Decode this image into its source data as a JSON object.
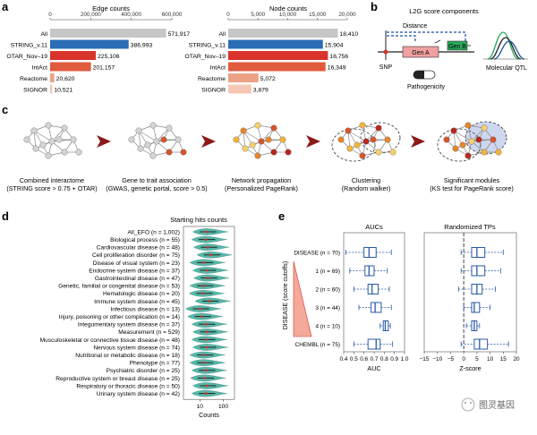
{
  "panel_letters": {
    "a": "a",
    "b": "b",
    "c": "c",
    "d": "d",
    "e": "e"
  },
  "colors": {
    "grey": "#c6c6c6",
    "blue": "#2a6db4",
    "red1": "#d8342b",
    "red2": "#e05a3c",
    "salmon1": "#eca286",
    "salmon2": "#f4c8b4",
    "violin": "#58b6a7",
    "box": "#2a5aa8",
    "dark_red_arrow": "#8b1a1a"
  },
  "chart_data": [
    {
      "type": "bar",
      "title": "Edge counts",
      "orientation": "horizontal",
      "categories": [
        "All",
        "STRING_v.11",
        "OTAR_Nov–19",
        "IntAct",
        "Reactome",
        "SIGNOR"
      ],
      "values": [
        571917,
        386993,
        225106,
        201157,
        20620,
        10521
      ],
      "value_labels": [
        "571,917",
        "386,993",
        "225,106",
        "201,157",
        "20,620",
        "10,521"
      ],
      "xlim": [
        0,
        600000
      ],
      "ticks": [
        "0",
        "200,000",
        "400,000",
        "600,000"
      ]
    },
    {
      "type": "bar",
      "title": "Node counts",
      "orientation": "horizontal",
      "categories": [
        "All",
        "STRING_v.11",
        "OTAR_Nov–19",
        "IntAct",
        "Reactome",
        "SIGNOR"
      ],
      "values": [
        18410,
        15904,
        16756,
        16349,
        5072,
        3879
      ],
      "value_labels": [
        "18,410",
        "15,904",
        "16,756",
        "16,349",
        "5,072",
        "3,879"
      ],
      "xlim": [
        0,
        20000
      ],
      "ticks": [
        "0",
        "5,000",
        "10,000",
        "15,000",
        "20,000"
      ]
    },
    {
      "type": "violin",
      "title": "Starting hits counts",
      "xlabel": "Counts",
      "x_scale": "log",
      "ticks": [
        "10",
        "100"
      ],
      "categories": [
        "All_EFO (n = 1,002)",
        "Biological process (n = 55)",
        "Cardiovascular disease (n = 48)",
        "Cell proliferation disorder (n = 75)",
        "Disease of visual system (n = 23)",
        "Endocrine system disease (n = 37)",
        "Gastrointestinal disease (n = 47)",
        "Genetic, familial or congenital disease (n = 53)",
        "Hematologic disease (n = 20)",
        "Immune system disease (n = 45)",
        "Infectious disease (n = 13)",
        "Injury, poisoning or other complication (n = 14)",
        "Integumentary system disease (n = 37)",
        "Measurement (n = 529)",
        "Musculoskeletal or connective tissue disease (n = 48)",
        "Nervous system disease (n = 74)",
        "Nutritional or metabolic disease (n = 18)",
        "Phenotype (n = 77)",
        "Psychiatric disorder (n = 25)",
        "Reproductive system or breast disease (n = 25)",
        "Respiratory or thoracic disease (n = 50)",
        "Urinary system disease (n = 42)"
      ],
      "medians": [
        20,
        18,
        22,
        30,
        15,
        20,
        22,
        15,
        14,
        25,
        10,
        12,
        18,
        20,
        18,
        20,
        15,
        15,
        18,
        16,
        20,
        18
      ]
    },
    {
      "type": "box",
      "title": "AUCs",
      "xlabel": "AUC",
      "xlim": [
        0.4,
        1.0
      ],
      "ticks": [
        "0.4",
        "0.5",
        "0.6",
        "0.7",
        "0.8",
        "0.9",
        "1.0"
      ],
      "ylabel": "DISEASE (score cutoffs)",
      "categories": [
        "DISEASE (n = 70)",
        "1 (n = 69)",
        "2 (n = 60)",
        "3 (n = 44)",
        "4 (n = 10)",
        "CHEMBL (n = 75)"
      ],
      "boxes": [
        {
          "min": 0.42,
          "q1": 0.6,
          "median": 0.65,
          "q3": 0.72,
          "max": 0.87
        },
        {
          "min": 0.46,
          "q1": 0.61,
          "median": 0.65,
          "q3": 0.7,
          "max": 0.83
        },
        {
          "min": 0.5,
          "q1": 0.64,
          "median": 0.68,
          "q3": 0.74,
          "max": 0.85
        },
        {
          "min": 0.55,
          "q1": 0.67,
          "median": 0.71,
          "q3": 0.77,
          "max": 0.87
        },
        {
          "min": 0.76,
          "q1": 0.79,
          "median": 0.81,
          "q3": 0.84,
          "max": 0.86
        },
        {
          "min": 0.5,
          "q1": 0.64,
          "median": 0.72,
          "q3": 0.76,
          "max": 0.88
        }
      ]
    },
    {
      "type": "box",
      "title": "Randomized TPs",
      "xlabel": "Z-score",
      "xlim": [
        -15,
        20
      ],
      "ticks": [
        "−15",
        "−10",
        "−5",
        "0",
        "5",
        "10",
        "15",
        "20"
      ],
      "reference_line": 0,
      "boxes": [
        {
          "min": -1,
          "q1": 3,
          "median": 5,
          "q3": 8,
          "max": 15
        },
        {
          "min": -1,
          "q1": 3,
          "median": 5,
          "q3": 8,
          "max": 14
        },
        {
          "min": -2,
          "q1": 3,
          "median": 5,
          "q3": 7,
          "max": 12
        },
        {
          "min": 0,
          "q1": 3,
          "median": 4,
          "q3": 6,
          "max": 10
        },
        {
          "min": 1,
          "q1": 3,
          "median": 4,
          "q3": 5,
          "max": 6
        },
        {
          "min": -1,
          "q1": 4,
          "median": 6,
          "q3": 9,
          "max": 17
        }
      ]
    }
  ],
  "panel_b": {
    "title": "L2G score components",
    "distance": "Distance",
    "gene_a": "Gen A",
    "gene_b": "Gen B",
    "snp": "SNP",
    "pathogenicity": "Pathogenicity",
    "molecular_qtl": "Molecular QTL"
  },
  "panel_c": {
    "steps": [
      {
        "title": "Combined interactome",
        "subtitle": "(STRING score > 0.75 + OTAR)"
      },
      {
        "title": "Gene to trait association",
        "subtitle": "(GWAS, genetic portal, score > 0.5)"
      },
      {
        "title": "Network propagation",
        "subtitle": "(Personalized PageRank)"
      },
      {
        "title": "Clustering",
        "subtitle": "(Random walker)"
      },
      {
        "title": "Significant modules",
        "subtitle": "(KS test for PageRank score)"
      }
    ]
  },
  "watermark": "图灵基因"
}
